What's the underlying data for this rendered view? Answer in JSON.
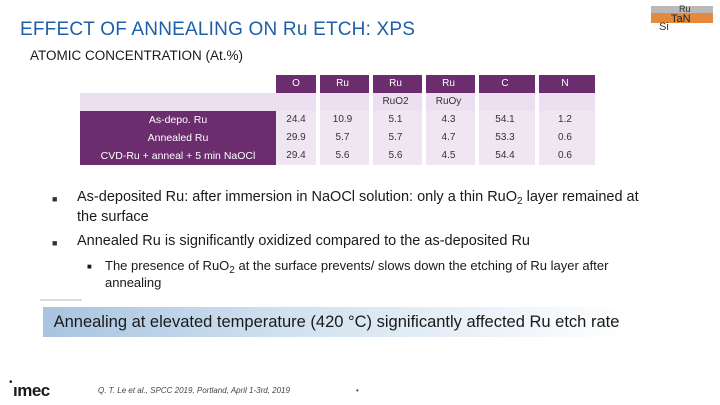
{
  "title": "EFFECT OF ANNEALING ON Ru ETCH: XPS",
  "stack_logo": {
    "top": "Ru",
    "middle": "TaN",
    "bottom": "Si",
    "colors": {
      "ru": "#b9b9b9",
      "tan": "#e48a3f"
    }
  },
  "subtitle": "ATOMIC CONCENTRATION (At.%)",
  "table": {
    "header1": [
      "O",
      "Ru",
      "Ru",
      "Ru",
      "C",
      "N"
    ],
    "header2": [
      "",
      "",
      "RuO2",
      "RuOy",
      "",
      ""
    ],
    "rows": [
      {
        "label": "As-depo. Ru",
        "values": [
          "24.4",
          "10.9",
          "5.1",
          "4.3",
          "54.1",
          "1.2"
        ]
      },
      {
        "label": "Annealed Ru",
        "values": [
          "29.9",
          "5.7",
          "5.7",
          "4.7",
          "53.3",
          "0.6"
        ]
      },
      {
        "label": "CVD-Ru + anneal + 5 min NaOCl",
        "values": [
          "29.4",
          "5.6",
          "5.6",
          "4.5",
          "54.4",
          "0.6"
        ]
      }
    ],
    "colors": {
      "header": "#6b2d6e",
      "row": "#efe6f2"
    }
  },
  "bullets": [
    {
      "before": "As-deposited Ru: after immersion in NaOCl solution: only a thin RuO",
      "sub": "2",
      "after": " layer remained at the surface"
    },
    {
      "before": "Annealed Ru is significantly oxidized compared to the as-deposited Ru",
      "sub": "",
      "after": ""
    }
  ],
  "sub_bullet": {
    "before": "The presence of RuO",
    "sub": "2",
    "after": " at the surface prevents/ slows down the etching of Ru layer after annealing"
  },
  "banner": "Annealing at elevated temperature (420 °C) significantly affected Ru etch rate",
  "footer": {
    "logo": "ımec",
    "citation": "Q. T. Le et al., SPCC 2019, Portland, April 1-3rd, 2019",
    "page": "•"
  }
}
